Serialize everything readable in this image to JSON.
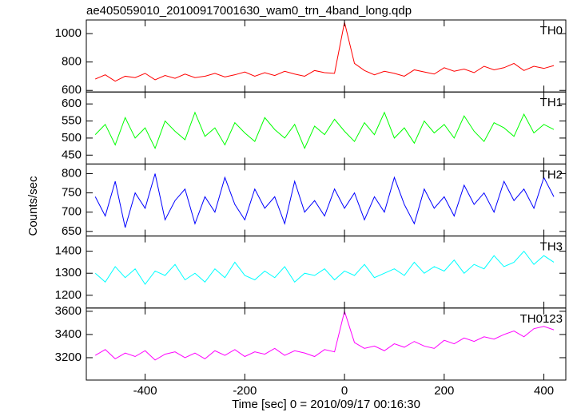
{
  "chart_data": [
    {
      "type": "line",
      "title": "ae405059010_20100917001630_wam0_trn_4band_long.qdp",
      "label": "TH0",
      "x": [
        -500,
        -480,
        -460,
        -440,
        -420,
        -400,
        -380,
        -360,
        -340,
        -320,
        -300,
        -280,
        -260,
        -240,
        -220,
        -200,
        -180,
        -160,
        -140,
        -120,
        -100,
        -80,
        -60,
        -40,
        -20,
        0,
        20,
        40,
        60,
        80,
        100,
        120,
        140,
        160,
        180,
        200,
        220,
        240,
        260,
        280,
        300,
        320,
        340,
        360,
        380,
        400,
        420
      ],
      "xlim": [
        -518,
        444
      ],
      "ylim": [
        589,
        1096
      ],
      "yticks": [
        600,
        800,
        1000
      ],
      "series": [
        {
          "color": "#ff0000",
          "values": [
            680,
            710,
            665,
            700,
            690,
            720,
            675,
            705,
            685,
            715,
            690,
            700,
            720,
            695,
            710,
            730,
            700,
            725,
            705,
            735,
            715,
            700,
            740,
            725,
            720,
            1080,
            790,
            740,
            710,
            735,
            720,
            700,
            745,
            730,
            715,
            760,
            735,
            750,
            725,
            770,
            745,
            760,
            790,
            740,
            770,
            755,
            775
          ]
        }
      ]
    },
    {
      "type": "line",
      "label": "TH1",
      "x": [
        -500,
        -480,
        -460,
        -440,
        -420,
        -400,
        -380,
        -360,
        -340,
        -320,
        -300,
        -280,
        -260,
        -240,
        -220,
        -200,
        -180,
        -160,
        -140,
        -120,
        -100,
        -80,
        -60,
        -40,
        -20,
        0,
        20,
        40,
        60,
        80,
        100,
        120,
        140,
        160,
        180,
        200,
        220,
        240,
        260,
        280,
        300,
        320,
        340,
        360,
        380,
        400,
        420
      ],
      "xlim": [
        -518,
        444
      ],
      "ylim": [
        424,
        635
      ],
      "yticks": [
        450,
        500,
        550,
        600
      ],
      "series": [
        {
          "color": "#00ff00",
          "values": [
            510,
            540,
            480,
            560,
            500,
            530,
            470,
            550,
            520,
            495,
            575,
            505,
            530,
            480,
            545,
            515,
            490,
            560,
            525,
            500,
            540,
            470,
            535,
            510,
            555,
            520,
            490,
            545,
            510,
            575,
            500,
            530,
            485,
            550,
            515,
            540,
            500,
            565,
            520,
            490,
            545,
            530,
            505,
            570,
            515,
            540,
            525
          ]
        }
      ]
    },
    {
      "type": "line",
      "label": "TH2",
      "ylabel": "Counts/sec",
      "x": [
        -500,
        -480,
        -460,
        -440,
        -420,
        -400,
        -380,
        -360,
        -340,
        -320,
        -300,
        -280,
        -260,
        -240,
        -220,
        -200,
        -180,
        -160,
        -140,
        -120,
        -100,
        -80,
        -60,
        -40,
        -20,
        0,
        20,
        40,
        60,
        80,
        100,
        120,
        140,
        160,
        180,
        200,
        220,
        240,
        260,
        280,
        300,
        320,
        340,
        360,
        380,
        400,
        420
      ],
      "xlim": [
        -518,
        444
      ],
      "ylim": [
        638,
        825
      ],
      "yticks": [
        650,
        700,
        750,
        800
      ],
      "series": [
        {
          "color": "#0000ff",
          "values": [
            740,
            690,
            780,
            660,
            750,
            710,
            800,
            680,
            730,
            760,
            670,
            740,
            700,
            790,
            720,
            680,
            760,
            710,
            740,
            670,
            780,
            700,
            730,
            690,
            760,
            710,
            750,
            680,
            740,
            700,
            790,
            720,
            670,
            760,
            710,
            740,
            690,
            770,
            720,
            750,
            700,
            780,
            730,
            760,
            710,
            790,
            740
          ]
        }
      ]
    },
    {
      "type": "line",
      "label": "TH3",
      "x": [
        -500,
        -480,
        -460,
        -440,
        -420,
        -400,
        -380,
        -360,
        -340,
        -320,
        -300,
        -280,
        -260,
        -240,
        -220,
        -200,
        -180,
        -160,
        -140,
        -120,
        -100,
        -80,
        -60,
        -40,
        -20,
        0,
        20,
        40,
        60,
        80,
        100,
        120,
        140,
        160,
        180,
        200,
        220,
        240,
        260,
        280,
        300,
        320,
        340,
        360,
        380,
        400,
        420
      ],
      "xlim": [
        -518,
        444
      ],
      "ylim": [
        1142,
        1469
      ],
      "yticks": [
        1200,
        1300,
        1400
      ],
      "series": [
        {
          "color": "#00ffff",
          "values": [
            1300,
            1260,
            1330,
            1280,
            1320,
            1250,
            1310,
            1290,
            1340,
            1270,
            1300,
            1260,
            1320,
            1280,
            1350,
            1290,
            1270,
            1310,
            1280,
            1330,
            1260,
            1300,
            1290,
            1320,
            1270,
            1310,
            1290,
            1340,
            1280,
            1300,
            1320,
            1290,
            1350,
            1300,
            1330,
            1310,
            1360,
            1300,
            1340,
            1320,
            1380,
            1330,
            1350,
            1400,
            1340,
            1380,
            1350
          ]
        }
      ]
    },
    {
      "type": "line",
      "label": "TH0123",
      "xlabel": "Time [sec] 0 = 2010/09/17 00:16:30",
      "x": [
        -500,
        -480,
        -460,
        -440,
        -420,
        -400,
        -380,
        -360,
        -340,
        -320,
        -300,
        -280,
        -260,
        -240,
        -220,
        -200,
        -180,
        -160,
        -140,
        -120,
        -100,
        -80,
        -60,
        -40,
        -20,
        0,
        20,
        40,
        60,
        80,
        100,
        120,
        140,
        160,
        180,
        200,
        220,
        240,
        260,
        280,
        300,
        320,
        340,
        360,
        380,
        400,
        420
      ],
      "xlim": [
        -518,
        444
      ],
      "xticks": [
        -400,
        -200,
        0,
        200,
        400
      ],
      "ylim": [
        3007,
        3628
      ],
      "yticks": [
        3200,
        3400,
        3600
      ],
      "series": [
        {
          "color": "#ff00ff",
          "values": [
            3220,
            3270,
            3190,
            3240,
            3210,
            3260,
            3180,
            3230,
            3250,
            3200,
            3240,
            3190,
            3260,
            3220,
            3270,
            3210,
            3250,
            3230,
            3280,
            3220,
            3260,
            3240,
            3210,
            3270,
            3250,
            3600,
            3330,
            3280,
            3300,
            3260,
            3320,
            3290,
            3340,
            3300,
            3280,
            3350,
            3320,
            3370,
            3340,
            3380,
            3360,
            3400,
            3430,
            3380,
            3450,
            3470,
            3440
          ]
        }
      ]
    }
  ]
}
